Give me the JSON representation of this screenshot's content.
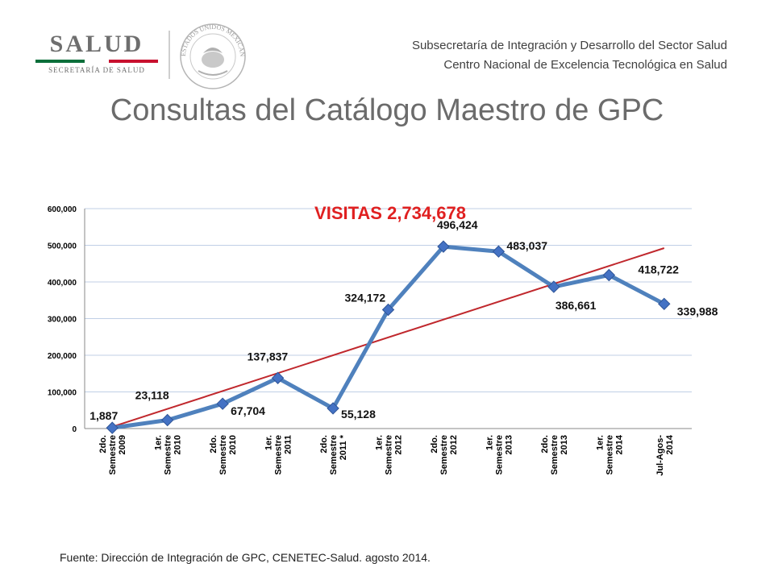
{
  "header": {
    "logo_text": "SALUD",
    "logo_subtext": "SECRETARÍA DE SALUD",
    "seal_text": "ESTADOS UNIDOS MEXICANOS",
    "line1": "Subsecretaría de Integración y Desarrollo del Sector Salud",
    "line2": "Centro Nacional de Excelencia Tecnológica en Salud"
  },
  "slide": {
    "title": "Consultas del Catálogo Maestro de GPC",
    "footer": "Fuente: Dirección de Integración de GPC, CENETEC-Salud. agosto 2014."
  },
  "colors": {
    "series": "#4f81bd",
    "marker": "#4472c4",
    "trend": "#c0282d",
    "chart_title": "#e02020",
    "grid": "#c0cfe6"
  },
  "chart_data": {
    "type": "line",
    "title": "VISITAS 2,734,678",
    "categories": [
      [
        "2do.",
        "Semestre",
        "2009"
      ],
      [
        "1er.",
        "Semestre",
        "2010"
      ],
      [
        "2do.",
        "Semestre",
        "2010"
      ],
      [
        "1er.",
        "Semestre",
        "2011"
      ],
      [
        "2do.",
        "Semestre",
        "2011 *"
      ],
      [
        "1er.",
        "Semestre",
        "2012"
      ],
      [
        "2do.",
        "Semestre",
        "2012"
      ],
      [
        "1er.",
        "Semestre",
        "2013"
      ],
      [
        "2do.",
        "Semestre",
        "2013"
      ],
      [
        "1er.",
        "Semestre",
        "2014"
      ],
      [
        "Jul-Agos-",
        "2014"
      ]
    ],
    "values": [
      1887,
      23118,
      67704,
      137837,
      55128,
      324172,
      496424,
      483037,
      386661,
      418722,
      339988
    ],
    "data_labels": [
      "1,887",
      "23,118",
      "67,704",
      "137,837",
      "55,128",
      "324,172",
      "496,424",
      "483,037",
      "386,661",
      "418,722",
      "339,988"
    ],
    "trendline": "linear",
    "ylim": [
      0,
      600000
    ],
    "yticks": [
      0,
      100000,
      200000,
      300000,
      400000,
      500000,
      600000
    ],
    "ytick_labels": [
      "0",
      "100,000",
      "200,000",
      "300,000",
      "400,000",
      "500,000",
      "600,000"
    ],
    "grid": true,
    "legend": "none",
    "xlabel": "",
    "ylabel": ""
  }
}
